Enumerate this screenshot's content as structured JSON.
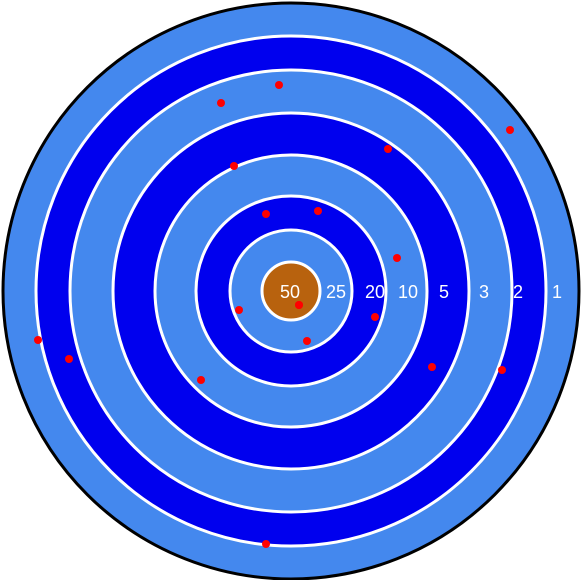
{
  "board": {
    "colors": {
      "outline": "#000000",
      "light_ring": "#4488ee",
      "dark_ring": "#0000ee",
      "separator": "#ffffff",
      "bullseye": "#b8620e",
      "hit": "#ff0000"
    },
    "rings": [
      {
        "points": 1,
        "label": "1",
        "color": "light"
      },
      {
        "points": 2,
        "label": "2",
        "color": "dark"
      },
      {
        "points": 3,
        "label": "3",
        "color": "light"
      },
      {
        "points": 5,
        "label": "5",
        "color": "dark"
      },
      {
        "points": 10,
        "label": "10",
        "color": "light"
      },
      {
        "points": 20,
        "label": "20",
        "color": "dark"
      },
      {
        "points": 25,
        "label": "25",
        "color": "light"
      },
      {
        "points": 50,
        "label": "50",
        "color": "bullseye"
      }
    ]
  },
  "hits": [
    {
      "ring": 50
    },
    {
      "ring": 25
    },
    {
      "ring": 25
    },
    {
      "ring": 20
    },
    {
      "ring": 20
    },
    {
      "ring": 20
    },
    {
      "ring": 10
    },
    {
      "ring": 10
    },
    {
      "ring": 5
    },
    {
      "ring": 5
    },
    {
      "ring": 5
    },
    {
      "ring": 3
    },
    {
      "ring": 3
    },
    {
      "ring": 2
    },
    {
      "ring": 2
    },
    {
      "ring": 2
    },
    {
      "ring": 1
    },
    {
      "ring": 1
    },
    {
      "ring": 1
    }
  ]
}
